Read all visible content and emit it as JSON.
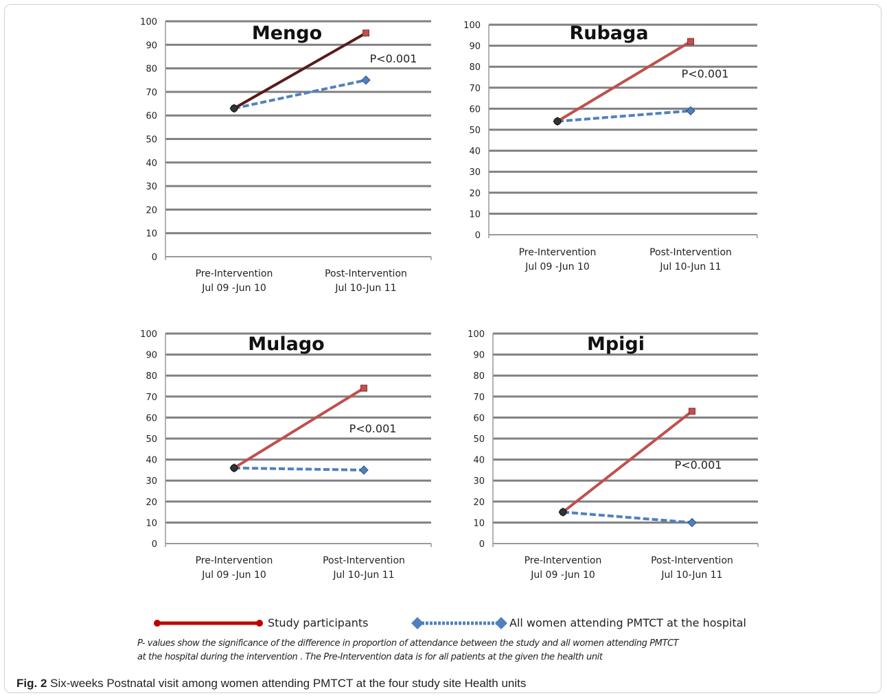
{
  "figure": {
    "note_line1": "P- values show the significance of the difference in  proportion of attendance  between the study and all women attending PMTCT",
    "note_line2": "at the hospital during the intervention . The Pre-Intervention data is for all patients at the given the health unit",
    "caption_label": "Fig. 2",
    "caption_text": "Six-weeks Postnatal visit among women attending PMTCT at the four study site Health units"
  },
  "legend": {
    "series1": "Study participants",
    "series2": "All women attending PMTCT at the hospital"
  },
  "colors": {
    "study": "#c0504d",
    "study_mengo": "#5a1a1a",
    "all": "#4f81bd",
    "grid": "#808080",
    "axis": "#999999"
  },
  "chart_data": [
    {
      "type": "line",
      "title": "Mengo",
      "annotation": "P<0.001",
      "categories": [
        "Pre-Intervention\nJul 09 -Jun 10",
        "Post-Intervention\nJul 10-Jun 11"
      ],
      "series": [
        {
          "name": "Study participants",
          "values": [
            63,
            95
          ]
        },
        {
          "name": "All women attending PMTCT at the hospital",
          "values": [
            63,
            75
          ]
        }
      ],
      "ylim": [
        0,
        100
      ],
      "yticks": [
        0,
        10,
        20,
        30,
        40,
        50,
        60,
        70,
        80,
        90,
        100
      ]
    },
    {
      "type": "line",
      "title": "Rubaga",
      "annotation": "P<0.001",
      "categories": [
        "Pre-Intervention\nJul 09 -Jun 10",
        "Post-Intervention\nJul 10-Jun 11"
      ],
      "series": [
        {
          "name": "Study participants",
          "values": [
            54,
            92
          ]
        },
        {
          "name": "All women attending PMTCT at the hospital",
          "values": [
            54,
            59
          ]
        }
      ],
      "ylim": [
        0,
        100
      ],
      "yticks": [
        0,
        10,
        20,
        30,
        40,
        50,
        60,
        70,
        80,
        90,
        100
      ]
    },
    {
      "type": "line",
      "title": "Mulago",
      "annotation": "P<0.001",
      "categories": [
        "Pre-Intervention\nJul 09 -Jun 10",
        "Post-Intervention\nJul 10-Jun 11"
      ],
      "series": [
        {
          "name": "Study participants",
          "values": [
            36,
            74
          ]
        },
        {
          "name": "All women attending PMTCT at the hospital",
          "values": [
            36,
            35
          ]
        }
      ],
      "ylim": [
        0,
        100
      ],
      "yticks": [
        0,
        10,
        20,
        30,
        40,
        50,
        60,
        70,
        80,
        90,
        100
      ]
    },
    {
      "type": "line",
      "title": "Mpigi",
      "annotation": "P<0.001",
      "categories": [
        "Pre-Intervention\nJul 09 -Jun 10",
        "Post-Intervention\nJul 10-Jun 11"
      ],
      "series": [
        {
          "name": "Study participants",
          "values": [
            15,
            63
          ]
        },
        {
          "name": "All women attending PMTCT at the hospital",
          "values": [
            15,
            10
          ]
        }
      ],
      "ylim": [
        0,
        100
      ],
      "yticks": [
        0,
        10,
        20,
        30,
        40,
        50,
        60,
        70,
        80,
        90,
        100
      ]
    }
  ]
}
